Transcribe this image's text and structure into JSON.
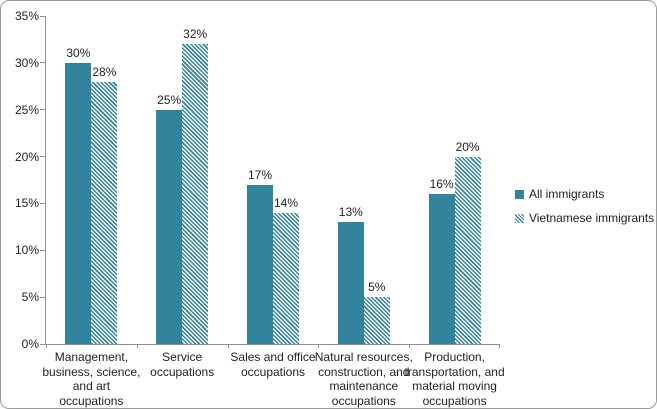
{
  "colors": {
    "bar_teal": "#31849C",
    "axis_gray": "#8F8F8F",
    "text": "#1F1F1F",
    "frame_border": "#9B9B9B",
    "background": "#FFFFFF"
  },
  "chart_data": {
    "type": "bar",
    "title": "",
    "xlabel": "",
    "ylabel": "",
    "grid": false,
    "legend_position": "right",
    "ylim": [
      0,
      35
    ],
    "y_tick_step": 5,
    "y_ticks": [
      "0%",
      "5%",
      "10%",
      "15%",
      "20%",
      "25%",
      "30%",
      "35%"
    ],
    "categories": [
      "Management,\nbusiness, science,\nand art\noccupations",
      "Service\noccupations",
      "Sales and office\noccupations",
      "Natural resources,\nconstruction, and\nmaintenance\noccupations",
      "Production,\ntransportation, and\nmaterial moving\noccupations"
    ],
    "series": [
      {
        "name": "All immigrants",
        "fill": "solid",
        "values": [
          30,
          25,
          17,
          13,
          16
        ],
        "labels": [
          "30%",
          "25%",
          "17%",
          "13%",
          "16%"
        ]
      },
      {
        "name": "Vietnamese immigrants",
        "fill": "hatch",
        "values": [
          28,
          32,
          14,
          5,
          20
        ],
        "labels": [
          "28%",
          "32%",
          "14%",
          "5%",
          "20%"
        ]
      }
    ]
  },
  "legend": {
    "items": [
      {
        "label": "All immigrants",
        "swatch": "solid"
      },
      {
        "label": "Vietnamese immigrants",
        "swatch": "hatch"
      }
    ]
  }
}
